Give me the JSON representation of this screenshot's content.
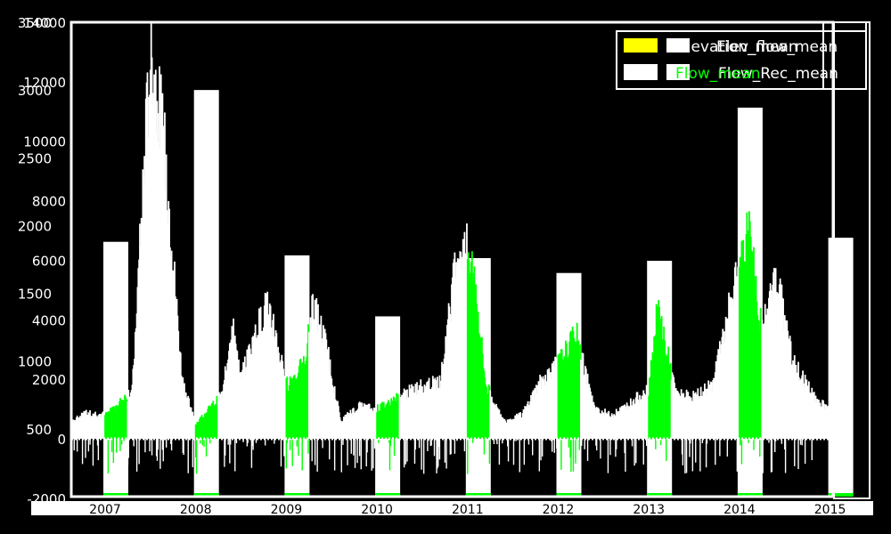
{
  "chart_data": {
    "type": "bar",
    "title": "",
    "xlabel": "",
    "ylabel": "",
    "grid": false,
    "legend_placement": "top-right",
    "colors": {
      "background": "#000000",
      "elevation_mean": "#ffff00",
      "flow_mean": "#ffffff",
      "flow_highlight": "#00ff00",
      "axis": "#ffffff"
    },
    "legend": {
      "front": [
        "Elevation_mean",
        "Flow_mean"
      ],
      "back": [
        "Elev_flow_mean",
        "Flow_Rec_mean"
      ]
    },
    "x_ticks": [
      "2007",
      "2008",
      "2009",
      "2010",
      "2011",
      "2012",
      "2013",
      "2014",
      "2015"
    ],
    "y_axis_left_outer": {
      "ticks": [
        "500",
        "1000",
        "1500",
        "2000",
        "2500",
        "3000",
        "3500"
      ],
      "ylim": [
        0,
        3500
      ]
    },
    "y_axis_left_inner": {
      "ticks": [
        "-2000",
        "0",
        "2000",
        "4000",
        "6000",
        "8000",
        "10000",
        "12000",
        "14000"
      ],
      "ylim": [
        -2000,
        14000
      ]
    },
    "series": [
      {
        "name": "Elevation_mean",
        "categories": [
          "2007",
          "2008",
          "2009",
          "2010",
          "2011",
          "2012",
          "2013",
          "2014",
          "2015"
        ],
        "values": [
          1880,
          3000,
          1780,
          1330,
          1760,
          1650,
          1740,
          2870,
          1910
        ]
      },
      {
        "name": "Flow_mean",
        "x_range": [
          2006.0,
          2015.2
        ],
        "baseline": 0,
        "profile_points": [
          [
            2006.0,
            2200
          ],
          [
            2006.1,
            2300
          ],
          [
            2006.25,
            2400
          ],
          [
            2006.4,
            1300
          ],
          [
            2006.6,
            500
          ],
          [
            2006.8,
            900
          ],
          [
            2007.0,
            800
          ],
          [
            2007.3,
            1600
          ],
          [
            2007.5,
            13000
          ],
          [
            2007.65,
            10000
          ],
          [
            2007.85,
            2000
          ],
          [
            2008.0,
            500
          ],
          [
            2008.3,
            1500
          ],
          [
            2008.4,
            4000
          ],
          [
            2008.5,
            2000
          ],
          [
            2008.65,
            3500
          ],
          [
            2008.8,
            4600
          ],
          [
            2009.0,
            1800
          ],
          [
            2009.2,
            2500
          ],
          [
            2009.3,
            4600
          ],
          [
            2009.45,
            3000
          ],
          [
            2009.6,
            600
          ],
          [
            2009.8,
            1100
          ],
          [
            2010.0,
            1000
          ],
          [
            2010.3,
            1500
          ],
          [
            2010.5,
            1800
          ],
          [
            2010.7,
            1900
          ],
          [
            2010.9,
            6500
          ],
          [
            2011.05,
            6200
          ],
          [
            2011.2,
            1800
          ],
          [
            2011.4,
            600
          ],
          [
            2011.6,
            800
          ],
          [
            2011.8,
            1900
          ],
          [
            2012.0,
            2500
          ],
          [
            2012.2,
            3500
          ],
          [
            2012.4,
            1000
          ],
          [
            2012.6,
            800
          ],
          [
            2012.8,
            1200
          ],
          [
            2013.0,
            1700
          ],
          [
            2013.1,
            4400
          ],
          [
            2013.3,
            1500
          ],
          [
            2013.5,
            1400
          ],
          [
            2013.7,
            1800
          ],
          [
            2013.9,
            4500
          ],
          [
            2014.1,
            7000
          ],
          [
            2014.25,
            3500
          ],
          [
            2014.4,
            5600
          ],
          [
            2014.6,
            2500
          ],
          [
            2014.85,
            1300
          ],
          [
            2015.0,
            1000
          ],
          [
            2015.2,
            1000
          ]
        ]
      }
    ],
    "highlight_windows_year_offset": [
      0.0,
      0.25
    ]
  }
}
